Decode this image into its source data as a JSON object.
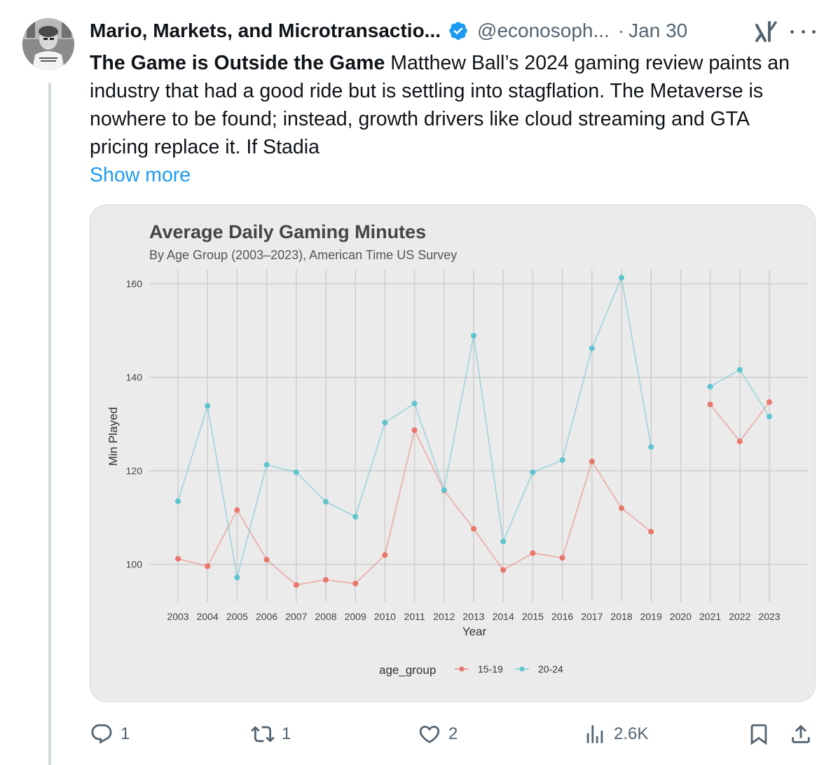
{
  "tweet": {
    "display_name": "Mario, Markets, and Microtransactio...",
    "handle": "@econosoph...",
    "separator": "·",
    "date": "Jan 30",
    "bold_title": "The Game is Outside the Game",
    "body": " Matthew Ball’s 2024 gaming review paints an industry that had a good ride but is settling into stagflation. The Metaverse is nowhere to be found; instead, growth drivers like cloud streaming and GTA pricing replace it. If Stadia",
    "show_more": "Show more",
    "icons": {
      "avatar": "avatar",
      "verified": "verified-badge-icon",
      "grok": "grok-icon",
      "more": "more-options-icon",
      "reply": "reply-icon",
      "retweet": "retweet-icon",
      "like": "heart-icon",
      "views": "views-chart-icon",
      "bookmark": "bookmark-icon",
      "share": "share-icon"
    },
    "colors": {
      "link": "#1d9bf0",
      "verified": "#1d9bf0",
      "muted": "#536471"
    }
  },
  "actions": {
    "reply_count": "1",
    "retweet_count": "1",
    "like_count": "2",
    "views_count": "2.6K"
  },
  "chart_data": {
    "type": "line",
    "title": "Average Daily Gaming Minutes",
    "subtitle": "By Age Group (2003–2023), American Time US Survey",
    "xlabel": "Year",
    "ylabel": "Min Played",
    "ylim": [
      92,
      163
    ],
    "yticks": [
      100,
      120,
      140,
      160
    ],
    "grid": true,
    "legend_position": "bottom",
    "legend_title": "age_group",
    "categories": [
      "2003",
      "2004",
      "2005",
      "2006",
      "2007",
      "2008",
      "2009",
      "2010",
      "2011",
      "2012",
      "2013",
      "2014",
      "2015",
      "2016",
      "2017",
      "2018",
      "2019",
      "2020",
      "2021",
      "2022",
      "2023"
    ],
    "series": [
      {
        "name": "15-19",
        "color": "#e8766b",
        "values": [
          101.2,
          99.6,
          111.6,
          101.0,
          95.6,
          96.7,
          95.9,
          102.0,
          128.7,
          115.8,
          107.6,
          98.8,
          102.4,
          101.4,
          122.0,
          112.0,
          107.0,
          null,
          134.2,
          126.3,
          134.7
        ]
      },
      {
        "name": "20-24",
        "color": "#5ec4ce",
        "values": [
          113.5,
          133.9,
          97.2,
          121.3,
          119.7,
          113.4,
          110.2,
          130.3,
          134.4,
          115.9,
          148.9,
          104.9,
          119.7,
          122.3,
          146.2,
          161.3,
          125.1,
          null,
          138.0,
          141.6,
          131.6
        ]
      }
    ]
  }
}
